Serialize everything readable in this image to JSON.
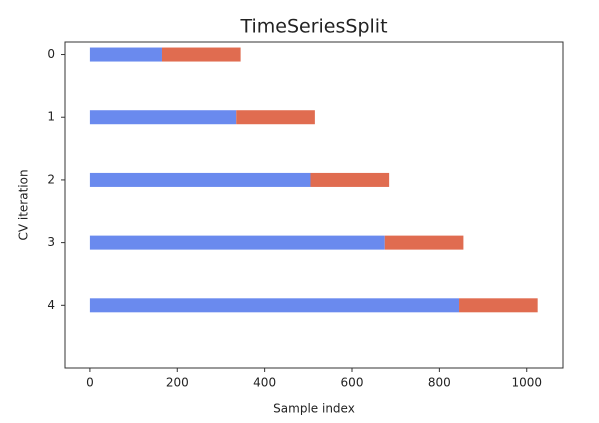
{
  "chart_data": {
    "type": "bar",
    "orientation": "horizontal",
    "stacked": true,
    "title": "TimeSeriesSplit",
    "x_label": "Sample index",
    "y_label": "CV iteration",
    "categories": [
      "0",
      "1",
      "2",
      "3",
      "4"
    ],
    "series": [
      {
        "color": "#6a8aee",
        "values": [
          165,
          335,
          505,
          675,
          845
        ]
      },
      {
        "color": "#e06c50",
        "values": [
          180,
          180,
          180,
          180,
          180
        ]
      }
    ],
    "xlim": [
      -57,
      1083
    ],
    "xticks": [
      0,
      200,
      400,
      600,
      800,
      1000
    ]
  }
}
